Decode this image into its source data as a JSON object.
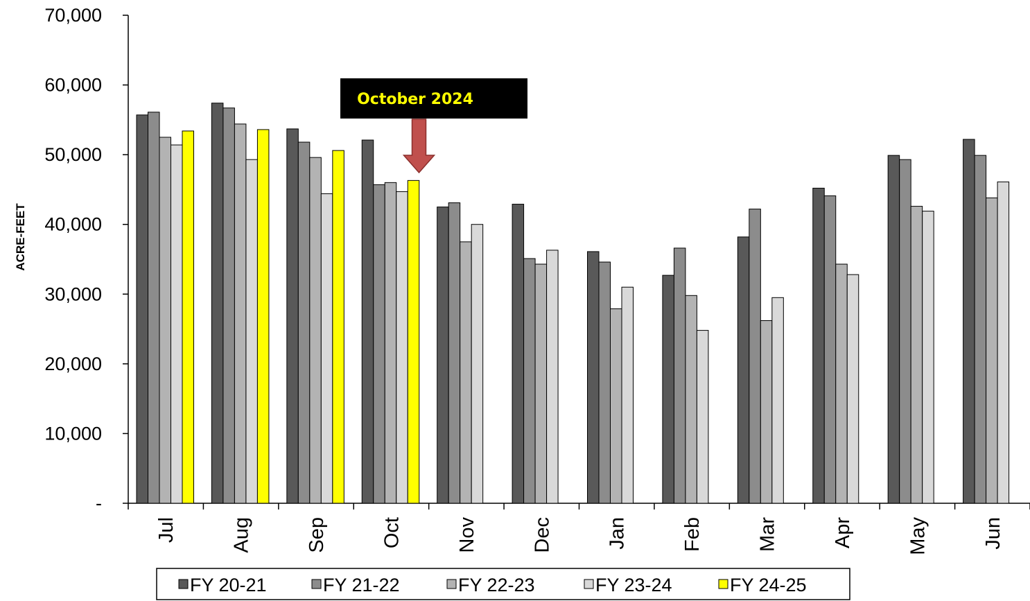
{
  "chart_data": {
    "type": "bar",
    "title": "",
    "xlabel": "",
    "ylabel": "ACRE-FEET",
    "ylim": [
      0,
      70000
    ],
    "yticks": [
      0,
      10000,
      20000,
      30000,
      40000,
      50000,
      60000,
      70000
    ],
    "ytick_labels": [
      "-",
      "10,000",
      "20,000",
      "30,000",
      "40,000",
      "50,000",
      "60,000",
      "70,000"
    ],
    "categories": [
      "Jul",
      "Aug",
      "Sep",
      "Oct",
      "Nov",
      "Dec",
      "Jan",
      "Feb",
      "Mar",
      "Apr",
      "May",
      "Jun"
    ],
    "grid": false,
    "legend_position": "bottom",
    "series": [
      {
        "name": "FY 20-21",
        "color": "#595959",
        "values": [
          55700,
          57400,
          53700,
          52100,
          42500,
          42900,
          36100,
          32700,
          38200,
          45200,
          49900,
          52200
        ]
      },
      {
        "name": "FY 21-22",
        "color": "#8c8c8c",
        "values": [
          56100,
          56700,
          51800,
          45700,
          43100,
          35100,
          34600,
          36600,
          42200,
          44100,
          49300,
          49900
        ]
      },
      {
        "name": "FY 22-23",
        "color": "#b3b3b3",
        "values": [
          52500,
          54400,
          49600,
          46000,
          37500,
          34300,
          27900,
          29800,
          26200,
          34300,
          42600,
          43800
        ]
      },
      {
        "name": "FY 23-24",
        "color": "#d9d9d9",
        "values": [
          51400,
          49300,
          44400,
          44700,
          40000,
          36300,
          31000,
          24800,
          29500,
          32800,
          41900,
          46100
        ]
      },
      {
        "name": "FY 24-25",
        "color": "#ffff00",
        "values": [
          53400,
          53600,
          50600,
          46300,
          null,
          null,
          null,
          null,
          null,
          null,
          null,
          null
        ]
      }
    ],
    "annotation": {
      "text": "October 2024",
      "text_color": "#ffff00",
      "box_color": "#000000",
      "arrow_color": "#c0504d",
      "points_to_category": "Oct",
      "points_to_series": "FY 24-25"
    }
  }
}
